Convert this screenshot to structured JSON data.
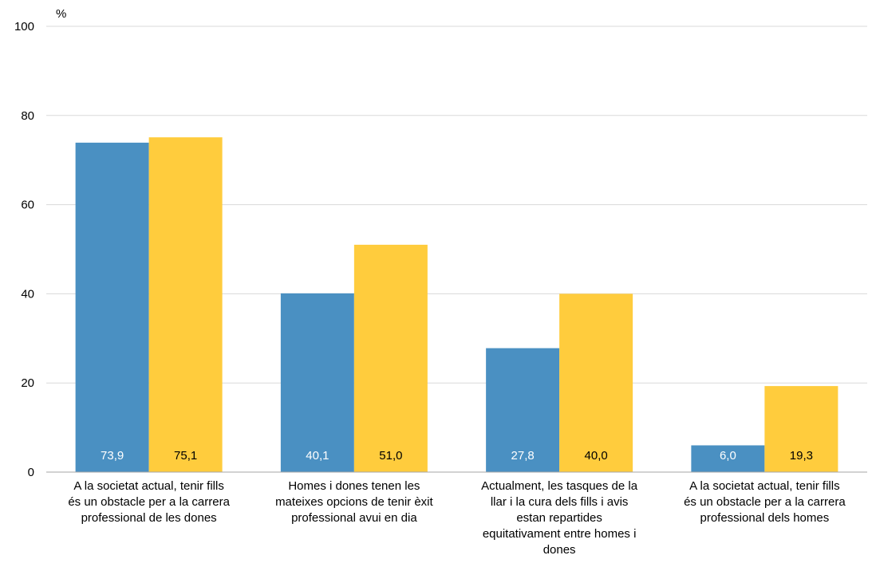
{
  "chart_data": {
    "type": "bar",
    "ylabel": "%",
    "ylim": [
      0,
      100
    ],
    "yticks": [
      0,
      20,
      40,
      60,
      80,
      100
    ],
    "grid": true,
    "categories": [
      [
        "A la societat actual, tenir fills",
        "és un obstacle per a la carrera",
        "professional de les dones"
      ],
      [
        "Homes i dones tenen les",
        "mateixes opcions de tenir èxit",
        "professional avui en dia"
      ],
      [
        "Actualment, les tasques de la",
        "llar i la cura dels fills i avis",
        "estan repartides",
        "equitativament entre homes i",
        "dones"
      ],
      [
        "A la societat actual, tenir fills",
        "és un obstacle per a la carrera",
        "professional dels homes"
      ]
    ],
    "series": [
      {
        "values": [
          73.9,
          40.1,
          27.8,
          6.0
        ],
        "labels": [
          "73,9",
          "40,1",
          "27,8",
          "6,0"
        ],
        "color": "#4A90C2",
        "label_color": "#ffffff"
      },
      {
        "values": [
          75.1,
          51.0,
          40.0,
          19.3
        ],
        "labels": [
          "75,1",
          "51,0",
          "40,0",
          "19,3"
        ],
        "color": "#FFCC3D",
        "label_color": "#000000"
      }
    ],
    "colors": {
      "grid": "#d9d9d9",
      "axis": "#a6a6a6"
    }
  }
}
